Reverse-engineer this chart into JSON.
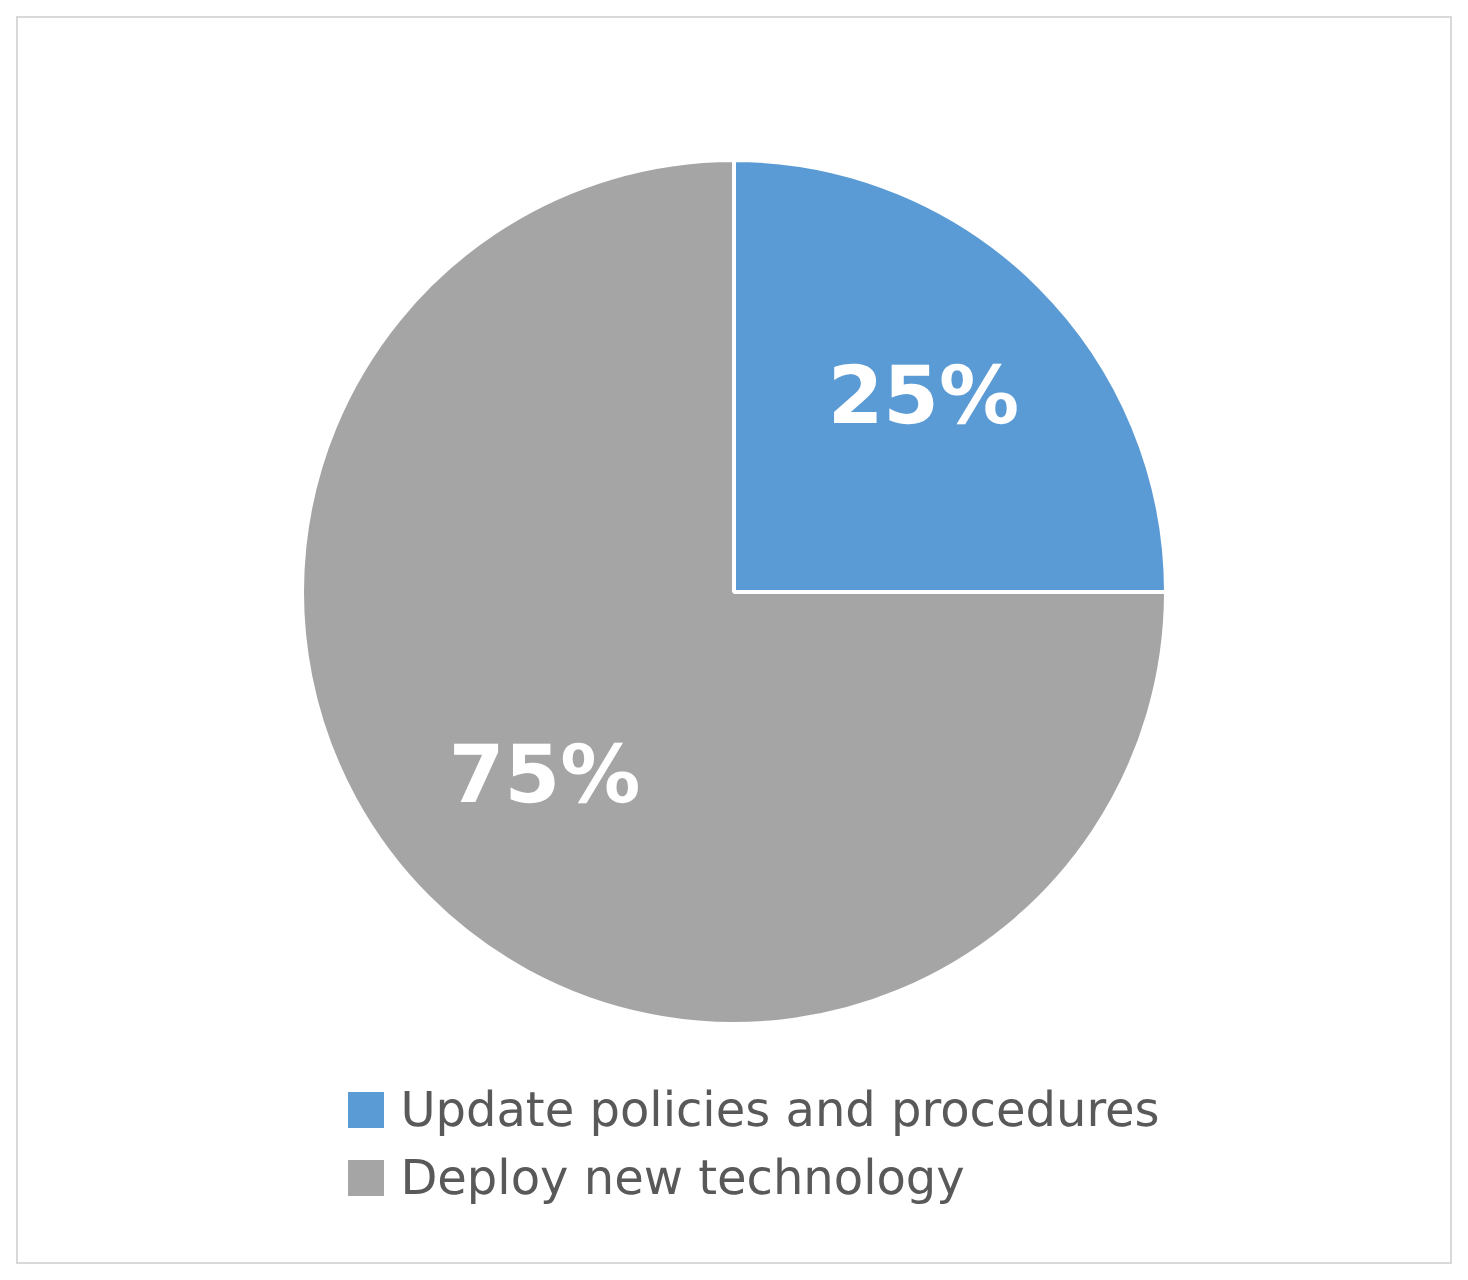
{
  "chart_data": {
    "type": "pie",
    "categories": [
      "Update policies and procedures",
      "Deploy new technology"
    ],
    "values": [
      25,
      75
    ],
    "colors": [
      "#5b9bd5",
      "#a5a5a5"
    ],
    "value_labels": [
      "25%",
      "75%"
    ],
    "legend": "bottom"
  }
}
